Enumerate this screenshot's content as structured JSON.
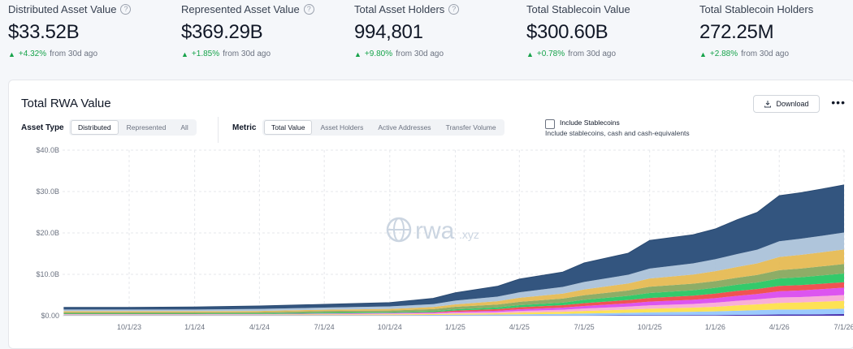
{
  "stats": [
    {
      "label": "Distributed Asset Value",
      "value": "$33.52B",
      "change": "+4.32%",
      "period": "from 30d ago"
    },
    {
      "label": "Represented Asset Value",
      "value": "$369.29B",
      "change": "+1.85%",
      "period": "from 30d ago"
    },
    {
      "label": "Total Asset Holders",
      "value": "994,801",
      "change": "+9.80%",
      "period": "from 30d ago"
    },
    {
      "label": "Total Stablecoin Value",
      "value": "$300.60B",
      "change": "+0.78%",
      "period": "from 30d ago"
    },
    {
      "label": "Total Stablecoin Holders",
      "value": "272.25M",
      "change": "+2.88%",
      "period": "from 30d ago"
    }
  ],
  "card": {
    "title": "Total RWA Value",
    "download_label": "Download",
    "more_label": "•••"
  },
  "controls": {
    "asset_type_label": "Asset Type",
    "asset_type_options": [
      "Distributed",
      "Represented",
      "All"
    ],
    "asset_type_selected": "Distributed",
    "metric_label": "Metric",
    "metric_options": [
      "Total Value",
      "Asset Holders",
      "Active Addresses",
      "Transfer Volume"
    ],
    "metric_selected": "Total Value",
    "include_stablecoins_label": "Include Stablecoins",
    "include_stablecoins_checked": false,
    "include_stablecoins_sub": "Include stablecoins, cash and cash-equivalents"
  },
  "watermark": {
    "text": "rwa",
    "suffix": ".xyz"
  },
  "icons": {
    "info": "info-circle-icon",
    "trend": "triangle-up-icon",
    "download": "download-icon",
    "more": "more-horizontal-icon"
  },
  "colors": {
    "positive": "#16a34a"
  },
  "chart_data": {
    "type": "area",
    "stacked": true,
    "y_ticks": [
      "$0.00",
      "$10.0B",
      "$20.0B",
      "$30.0B",
      "$40.0B"
    ],
    "ylim": [
      0,
      40
    ],
    "y_unit": "B USD",
    "x_ticks": [
      "10/1/23",
      "1/1/24",
      "4/1/24",
      "7/1/24",
      "10/1/24",
      "1/1/25",
      "4/1/25",
      "7/1/25",
      "10/1/25",
      "1/1/26",
      "4/1/26",
      "7/1/26"
    ],
    "x": [
      "7/1/23",
      "10/1/23",
      "1/1/24",
      "4/1/24",
      "7/1/24",
      "10/1/24",
      "12/1/24",
      "1/1/25",
      "3/1/25",
      "4/1/25",
      "6/1/25",
      "7/1/25",
      "9/1/25",
      "10/1/25",
      "12/1/25",
      "1/1/26",
      "2/1/26",
      "3/1/26",
      "4/1/26",
      "5/1/26",
      "6/1/26",
      "7/1/26"
    ],
    "series": [
      {
        "color": "#3b1fa8",
        "values": [
          0.05,
          0.05,
          0.05,
          0.05,
          0.05,
          0.05,
          0.05,
          0.05,
          0.05,
          0.05,
          0.05,
          0.05,
          0.1,
          0.1,
          0.15,
          0.15,
          0.2,
          0.25,
          0.3,
          0.3,
          0.35,
          0.4
        ]
      },
      {
        "color": "#93c5fd",
        "values": [
          0.1,
          0.1,
          0.1,
          0.1,
          0.1,
          0.1,
          0.15,
          0.2,
          0.25,
          0.3,
          0.4,
          0.5,
          0.6,
          0.7,
          0.8,
          0.9,
          1.0,
          1.1,
          1.2,
          1.2,
          1.25,
          1.3
        ]
      },
      {
        "color": "#fde047",
        "values": [
          0.1,
          0.1,
          0.1,
          0.1,
          0.15,
          0.2,
          0.2,
          0.25,
          0.3,
          0.4,
          0.5,
          0.6,
          0.8,
          0.9,
          1.0,
          1.1,
          1.3,
          1.4,
          1.6,
          1.7,
          1.8,
          1.9
        ]
      },
      {
        "color": "#f9a8d4",
        "values": [
          0.1,
          0.1,
          0.1,
          0.1,
          0.15,
          0.2,
          0.2,
          0.25,
          0.3,
          0.4,
          0.5,
          0.6,
          0.7,
          0.8,
          0.9,
          1.0,
          1.1,
          1.2,
          1.3,
          1.3,
          1.35,
          1.4
        ]
      },
      {
        "color": "#d946ef",
        "values": [
          0.05,
          0.05,
          0.05,
          0.05,
          0.1,
          0.1,
          0.15,
          0.2,
          0.3,
          0.4,
          0.5,
          0.6,
          0.8,
          0.9,
          1.0,
          1.1,
          1.2,
          1.3,
          1.5,
          1.6,
          1.7,
          1.8
        ]
      },
      {
        "color": "#ef4444",
        "values": [
          0.0,
          0.0,
          0.0,
          0.0,
          0.0,
          0.0,
          0.1,
          0.3,
          0.4,
          0.5,
          0.6,
          0.7,
          0.8,
          0.9,
          1.0,
          1.1,
          1.2,
          1.2,
          1.3,
          1.3,
          1.3,
          1.3
        ]
      },
      {
        "color": "#22c55e",
        "values": [
          0.1,
          0.1,
          0.1,
          0.15,
          0.2,
          0.2,
          0.25,
          0.3,
          0.4,
          0.5,
          0.6,
          0.8,
          1.0,
          1.2,
          1.3,
          1.4,
          1.5,
          1.6,
          1.8,
          1.9,
          2.0,
          2.1
        ]
      },
      {
        "color": "#84a65a",
        "values": [
          0.3,
          0.3,
          0.3,
          0.3,
          0.4,
          0.4,
          0.5,
          0.6,
          0.7,
          0.8,
          1.0,
          1.1,
          1.3,
          1.5,
          1.6,
          1.6,
          1.7,
          1.8,
          2.0,
          2.1,
          2.2,
          2.3
        ]
      },
      {
        "color": "#e5b94e",
        "values": [
          0.3,
          0.3,
          0.3,
          0.3,
          0.3,
          0.4,
          0.5,
          0.6,
          0.8,
          1.0,
          1.2,
          1.4,
          1.7,
          2.0,
          2.2,
          2.4,
          2.6,
          2.8,
          3.2,
          3.3,
          3.4,
          3.5
        ]
      },
      {
        "color": "#a8c0d8",
        "values": [
          0.4,
          0.4,
          0.4,
          0.5,
          0.5,
          0.6,
          0.7,
          0.9,
          1.1,
          1.3,
          1.6,
          1.8,
          2.1,
          2.4,
          2.7,
          2.9,
          3.1,
          3.3,
          3.8,
          3.9,
          4.0,
          4.1
        ]
      },
      {
        "color": "#33557f",
        "values": [
          0.5,
          0.5,
          0.6,
          0.7,
          0.8,
          0.9,
          1.4,
          1.9,
          2.5,
          3.2,
          3.6,
          4.6,
          5.2,
          6.8,
          6.9,
          7.3,
          8.3,
          9.0,
          11.0,
          11.1,
          11.3,
          11.5
        ]
      }
    ]
  }
}
